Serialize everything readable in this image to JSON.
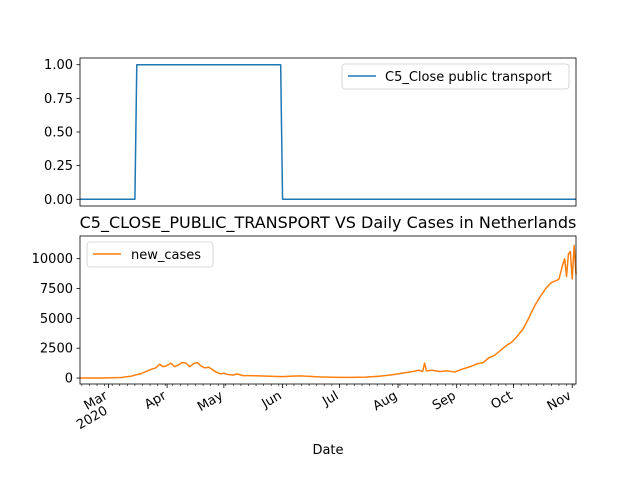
{
  "chart_data": [
    {
      "type": "line",
      "title": "",
      "xlabel": "",
      "ylabel": "",
      "ylim": [
        -0.05,
        1.05
      ],
      "yticks": [
        "0.00",
        "0.25",
        "0.50",
        "0.75",
        "1.00"
      ],
      "legend_position": "top-right",
      "grid": false,
      "series": [
        {
          "name": "C5_Close public transport",
          "color": "#1f77b4",
          "points": [
            [
              "2020-02-15",
              0
            ],
            [
              "2020-03-15",
              0
            ],
            [
              "2020-03-16",
              1
            ],
            [
              "2020-05-31",
              1
            ],
            [
              "2020-06-01",
              0
            ],
            [
              "2020-11-03",
              0
            ]
          ]
        }
      ]
    },
    {
      "type": "line",
      "title": "C5_CLOSE_PUBLIC_TRANSPORT VS Daily Cases in Netherlands",
      "xlabel": "Date",
      "ylabel": "",
      "ylim": [
        -500,
        11900
      ],
      "yticks": [
        "0",
        "2500",
        "5000",
        "7500",
        "10000"
      ],
      "legend_position": "top-left",
      "grid": false,
      "xticks": [
        {
          "date": "2020-03-01",
          "label": "Mar",
          "sub": "2020"
        },
        {
          "date": "2020-04-01",
          "label": "Apr",
          "sub": ""
        },
        {
          "date": "2020-05-01",
          "label": "May",
          "sub": ""
        },
        {
          "date": "2020-06-01",
          "label": "Jun",
          "sub": ""
        },
        {
          "date": "2020-07-01",
          "label": "Jul",
          "sub": ""
        },
        {
          "date": "2020-08-01",
          "label": "Aug",
          "sub": ""
        },
        {
          "date": "2020-09-01",
          "label": "Sep",
          "sub": ""
        },
        {
          "date": "2020-10-01",
          "label": "Oct",
          "sub": ""
        },
        {
          "date": "2020-11-01",
          "label": "Nov",
          "sub": ""
        }
      ],
      "series": [
        {
          "name": "new_cases",
          "color": "#ff7f0e",
          "points": [
            [
              "2020-02-15",
              0
            ],
            [
              "2020-02-27",
              0
            ],
            [
              "2020-03-01",
              10
            ],
            [
              "2020-03-05",
              30
            ],
            [
              "2020-03-08",
              50
            ],
            [
              "2020-03-10",
              100
            ],
            [
              "2020-03-13",
              150
            ],
            [
              "2020-03-15",
              250
            ],
            [
              "2020-03-18",
              350
            ],
            [
              "2020-03-21",
              550
            ],
            [
              "2020-03-24",
              750
            ],
            [
              "2020-03-26",
              850
            ],
            [
              "2020-03-28",
              1150
            ],
            [
              "2020-03-30",
              950
            ],
            [
              "2020-04-01",
              1050
            ],
            [
              "2020-04-03",
              1250
            ],
            [
              "2020-04-05",
              950
            ],
            [
              "2020-04-07",
              1100
            ],
            [
              "2020-04-09",
              1300
            ],
            [
              "2020-04-11",
              1250
            ],
            [
              "2020-04-13",
              950
            ],
            [
              "2020-04-15",
              1200
            ],
            [
              "2020-04-17",
              1300
            ],
            [
              "2020-04-19",
              1000
            ],
            [
              "2020-04-21",
              850
            ],
            [
              "2020-04-23",
              900
            ],
            [
              "2020-04-25",
              700
            ],
            [
              "2020-04-27",
              500
            ],
            [
              "2020-04-29",
              350
            ],
            [
              "2020-05-01",
              400
            ],
            [
              "2020-05-03",
              300
            ],
            [
              "2020-05-06",
              250
            ],
            [
              "2020-05-08",
              350
            ],
            [
              "2020-05-11",
              200
            ],
            [
              "2020-05-15",
              200
            ],
            [
              "2020-05-20",
              180
            ],
            [
              "2020-05-25",
              150
            ],
            [
              "2020-06-01",
              120
            ],
            [
              "2020-06-05",
              150
            ],
            [
              "2020-06-10",
              180
            ],
            [
              "2020-06-15",
              140
            ],
            [
              "2020-06-20",
              100
            ],
            [
              "2020-06-25",
              80
            ],
            [
              "2020-07-01",
              60
            ],
            [
              "2020-07-08",
              60
            ],
            [
              "2020-07-15",
              80
            ],
            [
              "2020-07-22",
              150
            ],
            [
              "2020-07-28",
              250
            ],
            [
              "2020-08-01",
              350
            ],
            [
              "2020-08-05",
              450
            ],
            [
              "2020-08-09",
              550
            ],
            [
              "2020-08-12",
              650
            ],
            [
              "2020-08-14",
              550
            ],
            [
              "2020-08-15",
              1250
            ],
            [
              "2020-08-16",
              600
            ],
            [
              "2020-08-19",
              650
            ],
            [
              "2020-08-23",
              550
            ],
            [
              "2020-08-27",
              600
            ],
            [
              "2020-08-31",
              500
            ],
            [
              "2020-09-03",
              700
            ],
            [
              "2020-09-06",
              850
            ],
            [
              "2020-09-09",
              1000
            ],
            [
              "2020-09-12",
              1200
            ],
            [
              "2020-09-15",
              1300
            ],
            [
              "2020-09-18",
              1700
            ],
            [
              "2020-09-21",
              1900
            ],
            [
              "2020-09-24",
              2300
            ],
            [
              "2020-09-27",
              2700
            ],
            [
              "2020-09-30",
              3000
            ],
            [
              "2020-10-03",
              3500
            ],
            [
              "2020-10-06",
              4100
            ],
            [
              "2020-10-09",
              5000
            ],
            [
              "2020-10-12",
              6000
            ],
            [
              "2020-10-15",
              6800
            ],
            [
              "2020-10-18",
              7500
            ],
            [
              "2020-10-21",
              8000
            ],
            [
              "2020-10-24",
              8200
            ],
            [
              "2020-10-25",
              8300
            ],
            [
              "2020-10-27",
              9500
            ],
            [
              "2020-10-28",
              10000
            ],
            [
              "2020-10-29",
              8500
            ],
            [
              "2020-10-30",
              10400
            ],
            [
              "2020-10-31",
              10600
            ],
            [
              "2020-11-01",
              8300
            ],
            [
              "2020-11-02",
              11100
            ],
            [
              "2020-11-03",
              8700
            ]
          ]
        }
      ]
    }
  ]
}
